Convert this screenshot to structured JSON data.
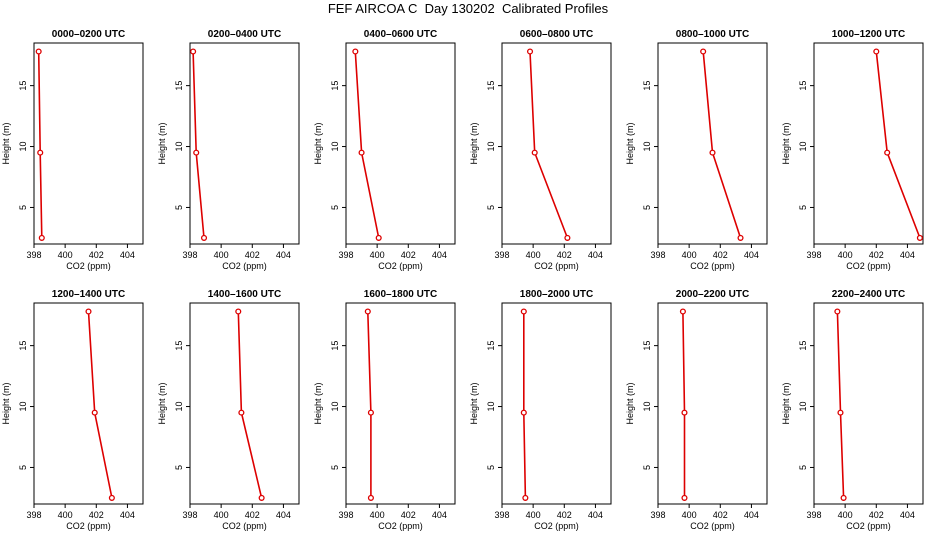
{
  "figure_title": "FEF AIRCOA C  Day 130202  Calibrated Profiles",
  "colors": {
    "series": "#dd0000",
    "axes": "#000000"
  },
  "chart_data": [
    {
      "type": "line",
      "title": "0000–0200 UTC",
      "xlabel": "CO2 (ppm)",
      "ylabel": "Height (m)",
      "xlim": [
        398,
        405
      ],
      "ylim": [
        2,
        18.5
      ],
      "xticks": [
        398,
        400,
        402,
        404
      ],
      "yticks": [
        5,
        10,
        15
      ],
      "x": [
        398.5,
        398.4,
        398.3
      ],
      "y": [
        2.5,
        9.5,
        17.8
      ],
      "grid": false
    },
    {
      "type": "line",
      "title": "0200–0400 UTC",
      "xlabel": "CO2 (ppm)",
      "ylabel": "Height (m)",
      "xlim": [
        398,
        405
      ],
      "ylim": [
        2,
        18.5
      ],
      "xticks": [
        398,
        400,
        402,
        404
      ],
      "yticks": [
        5,
        10,
        15
      ],
      "x": [
        398.9,
        398.4,
        398.2
      ],
      "y": [
        2.5,
        9.5,
        17.8
      ],
      "grid": false
    },
    {
      "type": "line",
      "title": "0400–0600 UTC",
      "xlabel": "CO2 (ppm)",
      "ylabel": "Height (m)",
      "xlim": [
        398,
        405
      ],
      "ylim": [
        2,
        18.5
      ],
      "xticks": [
        398,
        400,
        402,
        404
      ],
      "yticks": [
        5,
        10,
        15
      ],
      "x": [
        400.1,
        399.0,
        398.6
      ],
      "y": [
        2.5,
        9.5,
        17.8
      ],
      "grid": false
    },
    {
      "type": "line",
      "title": "0600–0800 UTC",
      "xlabel": "CO2 (ppm)",
      "ylabel": "Height (m)",
      "xlim": [
        398,
        405
      ],
      "ylim": [
        2,
        18.5
      ],
      "xticks": [
        398,
        400,
        402,
        404
      ],
      "yticks": [
        5,
        10,
        15
      ],
      "x": [
        402.2,
        400.1,
        399.8
      ],
      "y": [
        2.5,
        9.5,
        17.8
      ],
      "grid": false
    },
    {
      "type": "line",
      "title": "0800–1000 UTC",
      "xlabel": "CO2 (ppm)",
      "ylabel": "Height (m)",
      "xlim": [
        398,
        405
      ],
      "ylim": [
        2,
        18.5
      ],
      "xticks": [
        398,
        400,
        402,
        404
      ],
      "yticks": [
        5,
        10,
        15
      ],
      "x": [
        403.3,
        401.5,
        400.9
      ],
      "y": [
        2.5,
        9.5,
        17.8
      ],
      "grid": false
    },
    {
      "type": "line",
      "title": "1000–1200 UTC",
      "xlabel": "CO2 (ppm)",
      "ylabel": "Height (m)",
      "xlim": [
        398,
        405
      ],
      "ylim": [
        2,
        18.5
      ],
      "xticks": [
        398,
        400,
        402,
        404
      ],
      "yticks": [
        5,
        10,
        15
      ],
      "x": [
        404.8,
        402.7,
        402.0
      ],
      "y": [
        2.5,
        9.5,
        17.8
      ],
      "grid": false
    },
    {
      "type": "line",
      "title": "1200–1400 UTC",
      "xlabel": "CO2 (ppm)",
      "ylabel": "Height (m)",
      "xlim": [
        398,
        405
      ],
      "ylim": [
        2,
        18.5
      ],
      "xticks": [
        398,
        400,
        402,
        404
      ],
      "yticks": [
        5,
        10,
        15
      ],
      "x": [
        403.0,
        401.9,
        401.5
      ],
      "y": [
        2.5,
        9.5,
        17.8
      ],
      "grid": false
    },
    {
      "type": "line",
      "title": "1400–1600 UTC",
      "xlabel": "CO2 (ppm)",
      "ylabel": "Height (m)",
      "xlim": [
        398,
        405
      ],
      "ylim": [
        2,
        18.5
      ],
      "xticks": [
        398,
        400,
        402,
        404
      ],
      "yticks": [
        5,
        10,
        15
      ],
      "x": [
        402.6,
        401.3,
        401.1
      ],
      "y": [
        2.5,
        9.5,
        17.8
      ],
      "grid": false
    },
    {
      "type": "line",
      "title": "1600–1800 UTC",
      "xlabel": "CO2 (ppm)",
      "ylabel": "Height (m)",
      "xlim": [
        398,
        405
      ],
      "ylim": [
        2,
        18.5
      ],
      "xticks": [
        398,
        400,
        402,
        404
      ],
      "yticks": [
        5,
        10,
        15
      ],
      "x": [
        399.6,
        399.6,
        399.4
      ],
      "y": [
        2.5,
        9.5,
        17.8
      ],
      "grid": false
    },
    {
      "type": "line",
      "title": "1800–2000 UTC",
      "xlabel": "CO2 (ppm)",
      "ylabel": "Height (m)",
      "xlim": [
        398,
        405
      ],
      "ylim": [
        2,
        18.5
      ],
      "xticks": [
        398,
        400,
        402,
        404
      ],
      "yticks": [
        5,
        10,
        15
      ],
      "x": [
        399.5,
        399.4,
        399.4
      ],
      "y": [
        2.5,
        9.5,
        17.8
      ],
      "grid": false
    },
    {
      "type": "line",
      "title": "2000–2200 UTC",
      "xlabel": "CO2 (ppm)",
      "ylabel": "Height (m)",
      "xlim": [
        398,
        405
      ],
      "ylim": [
        2,
        18.5
      ],
      "xticks": [
        398,
        400,
        402,
        404
      ],
      "yticks": [
        5,
        10,
        15
      ],
      "x": [
        399.7,
        399.7,
        399.6
      ],
      "y": [
        2.5,
        9.5,
        17.8
      ],
      "grid": false
    },
    {
      "type": "line",
      "title": "2200–2400 UTC",
      "xlabel": "CO2 (ppm)",
      "ylabel": "Height (m)",
      "xlim": [
        398,
        405
      ],
      "ylim": [
        2,
        18.5
      ],
      "xticks": [
        398,
        400,
        402,
        404
      ],
      "yticks": [
        5,
        10,
        15
      ],
      "x": [
        399.9,
        399.7,
        399.5
      ],
      "y": [
        2.5,
        9.5,
        17.8
      ],
      "grid": false
    }
  ]
}
